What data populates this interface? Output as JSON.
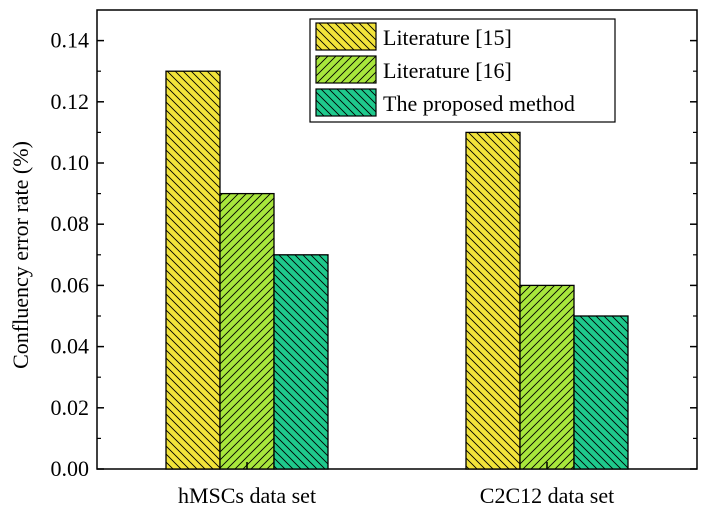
{
  "chart_data": {
    "type": "bar",
    "title": "",
    "xlabel": "",
    "ylabel": "Confluency error rate (%)",
    "ylim": [
      0,
      0.15
    ],
    "yticks": [
      "0.00",
      "0.02",
      "0.04",
      "0.06",
      "0.08",
      "0.10",
      "0.12",
      "0.14"
    ],
    "categories": [
      "hMSCs data set",
      "C2C12 data set"
    ],
    "series": [
      {
        "name": "Literature [15]",
        "values": [
          0.13,
          0.11
        ],
        "color": "#f2e33a",
        "hatch": "back-diagonal"
      },
      {
        "name": "Literature [16]",
        "values": [
          0.09,
          0.06
        ],
        "color": "#a8e63c",
        "hatch": "forward-diagonal"
      },
      {
        "name": "The proposed method",
        "values": [
          0.07,
          0.05
        ],
        "color": "#1fc98c",
        "hatch": "back-diagonal"
      }
    ],
    "legend_position": "top-right",
    "grid": false
  }
}
